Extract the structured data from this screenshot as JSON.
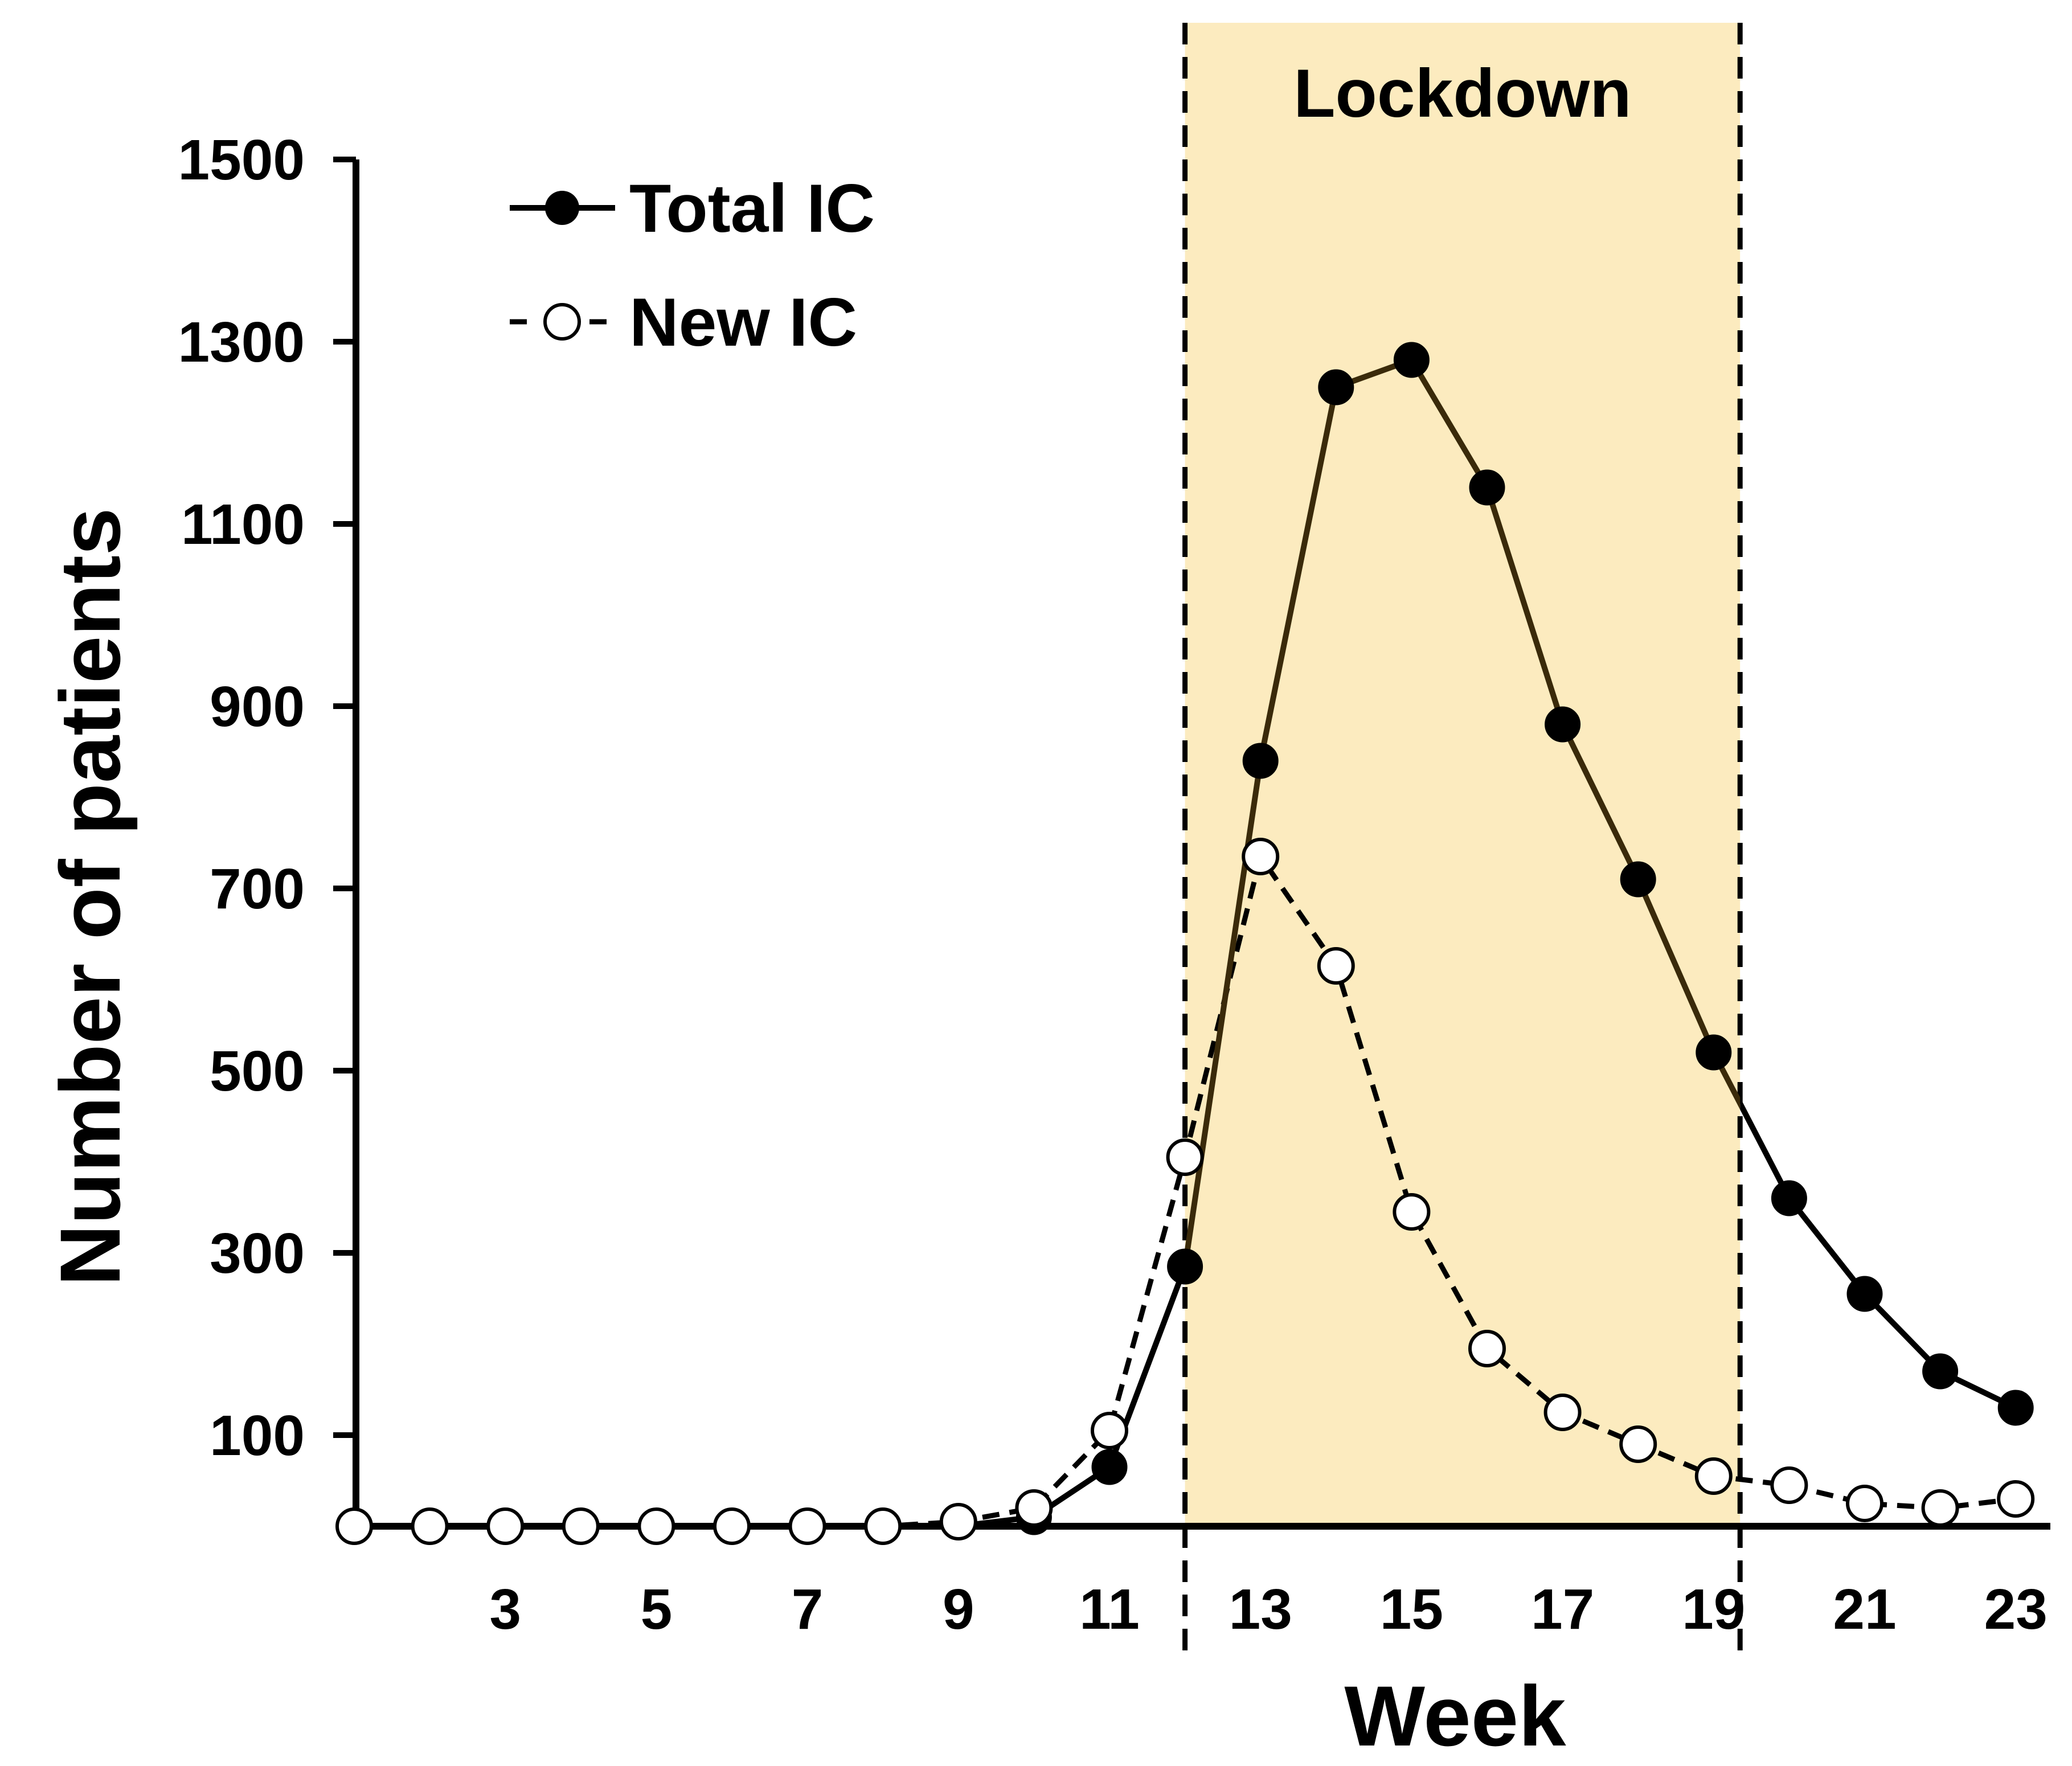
{
  "chart_data": {
    "type": "line",
    "xlabel": "Week",
    "ylabel": "Number of patients",
    "xlim": [
      1,
      23.5
    ],
    "ylim": [
      0,
      1500
    ],
    "yticks": [
      100,
      300,
      500,
      700,
      900,
      1100,
      1300,
      1500
    ],
    "xticks": [
      3,
      5,
      7,
      9,
      11,
      13,
      15,
      17,
      19,
      21,
      23
    ],
    "x": [
      1,
      2,
      3,
      4,
      5,
      6,
      7,
      8,
      9,
      10,
      11,
      12,
      13,
      14,
      15,
      16,
      17,
      18,
      19,
      20,
      21,
      22,
      23
    ],
    "series": [
      {
        "name": "Total IC",
        "marker": "filled-circle",
        "line": "solid",
        "values": [
          0,
          0,
          0,
          0,
          0,
          0,
          0,
          0,
          0,
          10,
          65,
          285,
          840,
          1250,
          1280,
          1140,
          880,
          710,
          520,
          360,
          255,
          170,
          130
        ]
      },
      {
        "name": "New IC",
        "marker": "open-circle",
        "line": "dashed",
        "values": [
          0,
          0,
          0,
          0,
          0,
          0,
          0,
          0,
          5,
          20,
          105,
          405,
          735,
          615,
          345,
          195,
          125,
          90,
          55,
          45,
          25,
          20,
          30
        ]
      }
    ],
    "annotations": [
      {
        "type": "shaded-region",
        "label": "Lockdown",
        "x_start": 12,
        "x_end": 19.35,
        "color": "#FCEBBF"
      }
    ],
    "legend": {
      "position": "top-left",
      "entries": [
        "Total IC",
        "New IC"
      ]
    },
    "grid": false
  },
  "colors": {
    "shade": "#FCEBBF",
    "series_line_in_lockdown": "#3A2A0A",
    "axis": "#000000"
  }
}
